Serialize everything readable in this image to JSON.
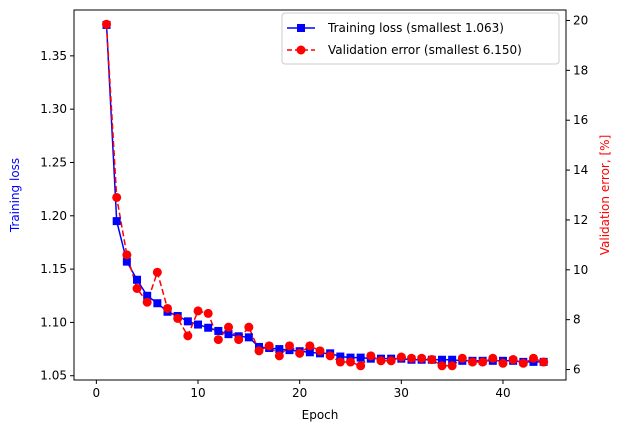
{
  "chart_data": {
    "type": "line",
    "xlabel": "Epoch",
    "ylabel_left": "Training loss",
    "ylabel_right": "Validation error, [%]",
    "xlim": [
      -2.2,
      46.2
    ],
    "ylim_left": [
      1.046,
      1.393
    ],
    "ylim_right": [
      5.58,
      20.42
    ],
    "x_ticks": [
      0,
      10,
      20,
      30,
      40
    ],
    "y_ticks_left": [
      1.05,
      1.1,
      1.15,
      1.2,
      1.25,
      1.3,
      1.35
    ],
    "y_ticks_right": [
      6,
      8,
      10,
      12,
      14,
      16,
      18,
      20
    ],
    "legend_position": "top-right",
    "colors": {
      "training": "#0000ff",
      "validation": "#ff0000",
      "left_label": "#0000ff",
      "right_label": "#ff0000"
    },
    "x": [
      1,
      2,
      3,
      4,
      5,
      6,
      7,
      8,
      9,
      10,
      11,
      12,
      13,
      14,
      15,
      16,
      17,
      18,
      19,
      20,
      21,
      22,
      23,
      24,
      25,
      26,
      27,
      28,
      29,
      30,
      31,
      32,
      33,
      34,
      35,
      36,
      37,
      38,
      39,
      40,
      41,
      42,
      43,
      44
    ],
    "series": [
      {
        "name": "Training loss (smallest 1.063)",
        "axis": "left",
        "style": "solid-square",
        "values": [
          1.379,
          1.195,
          1.157,
          1.14,
          1.125,
          1.118,
          1.11,
          1.106,
          1.101,
          1.098,
          1.095,
          1.092,
          1.089,
          1.087,
          1.086,
          1.077,
          1.076,
          1.075,
          1.074,
          1.073,
          1.072,
          1.071,
          1.071,
          1.068,
          1.067,
          1.067,
          1.066,
          1.066,
          1.066,
          1.066,
          1.065,
          1.065,
          1.065,
          1.065,
          1.065,
          1.064,
          1.064,
          1.064,
          1.064,
          1.064,
          1.064,
          1.063,
          1.063,
          1.063
        ]
      },
      {
        "name": "Validation error (smallest 6.150)",
        "axis": "right",
        "style": "dashed-circle",
        "values": [
          19.85,
          12.9,
          10.6,
          9.25,
          8.7,
          9.9,
          8.45,
          8.05,
          7.35,
          8.35,
          8.25,
          7.2,
          7.7,
          7.2,
          7.7,
          6.75,
          6.95,
          6.55,
          6.95,
          6.65,
          6.95,
          6.75,
          6.55,
          6.3,
          6.3,
          6.15,
          6.55,
          6.35,
          6.35,
          6.5,
          6.45,
          6.45,
          6.4,
          6.15,
          6.15,
          6.45,
          6.3,
          6.3,
          6.45,
          6.25,
          6.4,
          6.25,
          6.45,
          6.3
        ]
      }
    ]
  }
}
